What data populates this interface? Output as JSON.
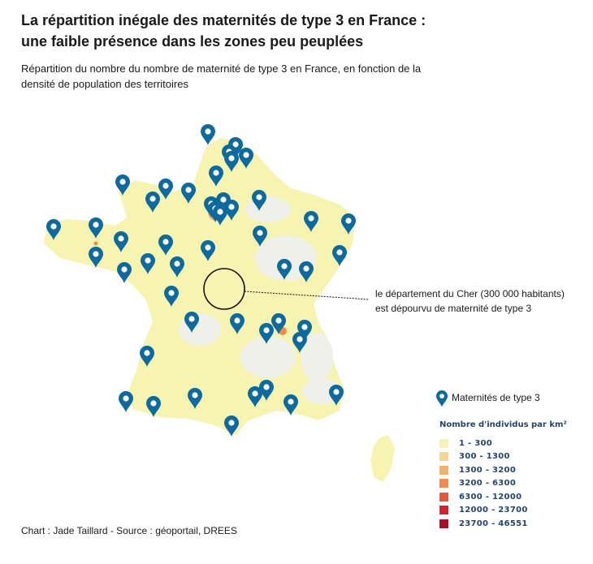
{
  "header": {
    "title_line1": "La répartition inégale des maternités de type 3 en France :",
    "title_line2": "une faible présence dans les zones peu peuplées",
    "subtitle_line1": "Répartition du nombre du nombre de maternité de type 3 en France, en fonction de la",
    "subtitle_line2": "densité de population des territoires"
  },
  "annotation": {
    "line1": "le département du Cher (300 000 habitants)",
    "line2": "est dépourvu de maternité de type 3"
  },
  "legend": {
    "marker_label": "Maternités de type 3",
    "marker_color": "#0d6a9e",
    "density_title": "Nombre d'individus par km²",
    "density_classes": [
      {
        "label": "1 - 300",
        "color": "#f7f4b2"
      },
      {
        "label": "300 - 1300",
        "color": "#f8d48c"
      },
      {
        "label": "1300 - 3200",
        "color": "#f8b268"
      },
      {
        "label": "3200 - 6300",
        "color": "#f48a4a"
      },
      {
        "label": "6300 - 12000",
        "color": "#ea5634"
      },
      {
        "label": "12000 - 23700",
        "color": "#d6222a"
      },
      {
        "label": "23700 - 46551",
        "color": "#a5122a"
      }
    ]
  },
  "map": {
    "base_color": "#f7f4b2",
    "sparse_color": "#f0f0ea",
    "highlight_region": "Cher"
  },
  "source": "Chart : Jade Taillard - Source : géoportail, DREES"
}
